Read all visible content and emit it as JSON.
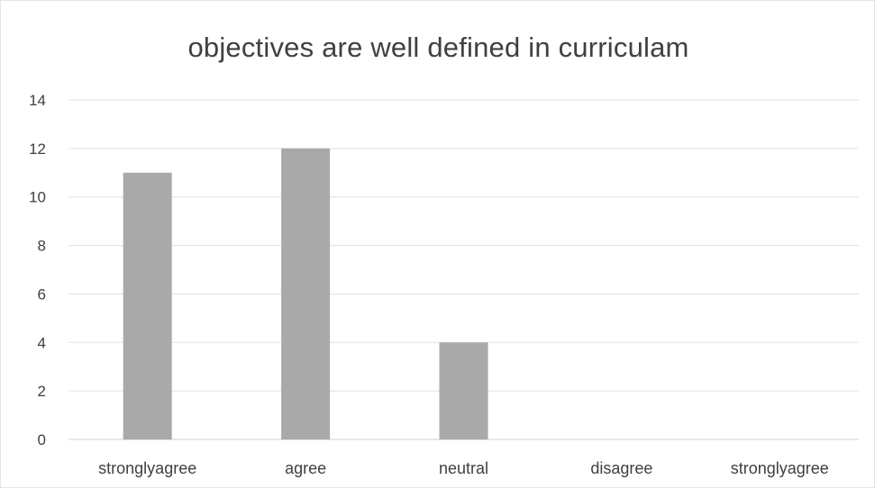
{
  "chart_data": {
    "type": "bar",
    "title": "objectives are well defined in curriculam",
    "categories": [
      "stronglyagree",
      "agree",
      "neutral",
      "disagree",
      "stronglyagree"
    ],
    "values": [
      11,
      12,
      4,
      0,
      0
    ],
    "ylim": [
      0,
      14
    ],
    "yticks": [
      0,
      2,
      4,
      6,
      8,
      10,
      12,
      14
    ],
    "grid": true,
    "legend": "none",
    "colors": {
      "bar": "#a9a9a9",
      "grid": "#e0e0e0",
      "text": "#404040"
    }
  }
}
